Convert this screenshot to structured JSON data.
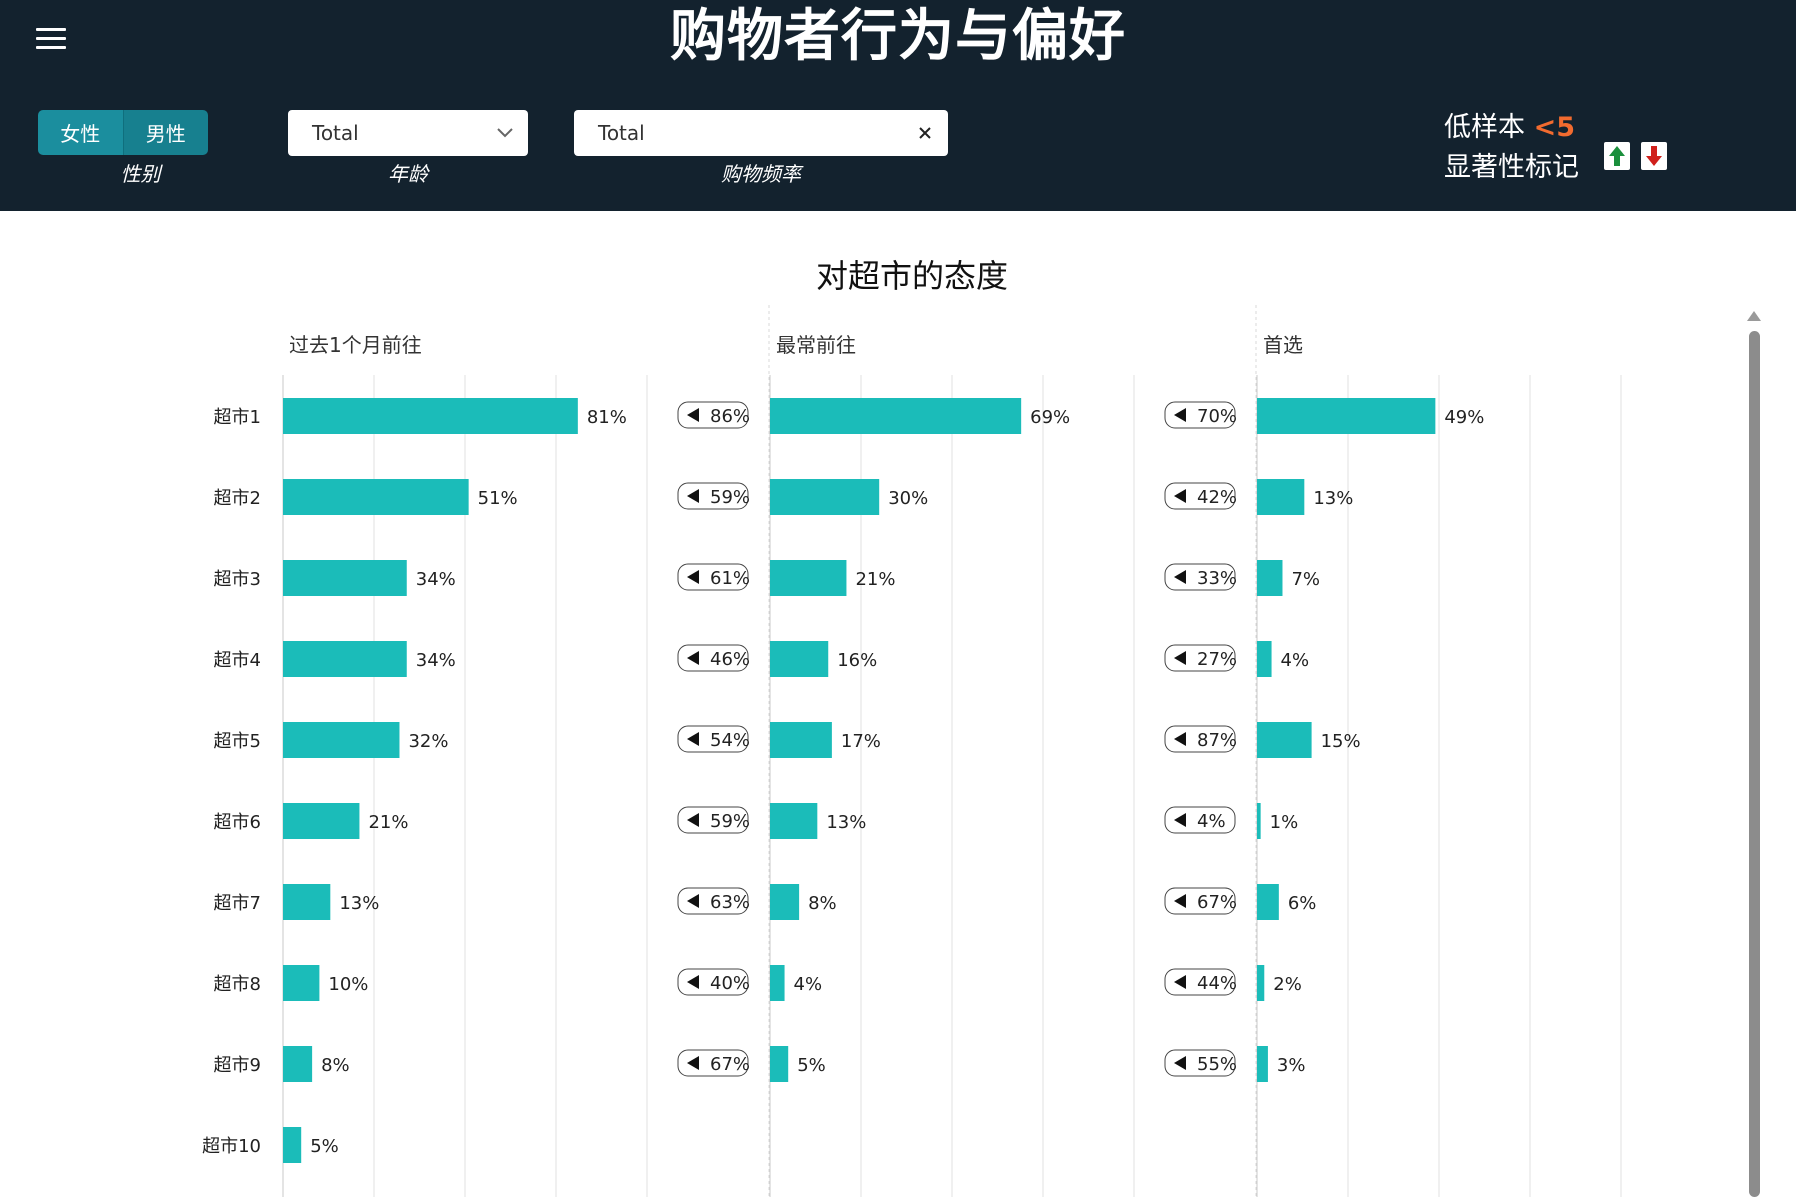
{
  "header": {
    "title": "购物者行为与偏好",
    "gender": {
      "options": [
        "女性",
        "男性"
      ],
      "label": "性别"
    },
    "age": {
      "value": "Total",
      "label": "年龄"
    },
    "frequency": {
      "value": "Total",
      "label": "购物频率"
    },
    "legend": {
      "low_sample_label": "低样本",
      "low_sample_value": "<5",
      "significance_label": "显著性标记"
    }
  },
  "colors": {
    "header_bg": "#13222e",
    "bar": "#1bbcb9",
    "accent": "#1b8e9e",
    "warning": "#f26b2f",
    "sig_up": "#1a8f3c",
    "sig_down": "#d0201c"
  },
  "icons": {
    "menu": "hamburger-icon",
    "age_dropdown": "chevron-down-icon",
    "frequency_clear": "close-icon",
    "sig_up": "arrow-up-icon",
    "sig_down": "arrow-down-icon",
    "badge": "triangle-left-icon"
  },
  "chart_data": {
    "type": "bar",
    "orientation": "horizontal",
    "title": "对超市的态度",
    "categories": [
      "超市1",
      "超市2",
      "超市3",
      "超市4",
      "超市5",
      "超市6",
      "超市7",
      "超市8",
      "超市9",
      "超市10"
    ],
    "xlim": [
      0,
      100
    ],
    "grid": true,
    "panels": [
      {
        "title": "过去1个月前往",
        "values": [
          81,
          51,
          34,
          34,
          32,
          21,
          13,
          10,
          8,
          5
        ],
        "labels": [
          "81%",
          "51%",
          "34%",
          "34%",
          "32%",
          "21%",
          "13%",
          "10%",
          "8%",
          "5%"
        ]
      },
      {
        "title": "最常前往",
        "values": [
          69,
          30,
          21,
          16,
          17,
          13,
          8,
          4,
          5
        ],
        "labels": [
          "69%",
          "30%",
          "21%",
          "16%",
          "17%",
          "13%",
          "8%",
          "4%",
          "5%"
        ],
        "badges": [
          "86%",
          "59%",
          "61%",
          "46%",
          "54%",
          "59%",
          "63%",
          "40%",
          "67%"
        ]
      },
      {
        "title": "首选",
        "values": [
          49,
          13,
          7,
          4,
          15,
          1,
          6,
          2,
          3
        ],
        "labels": [
          "49%",
          "13%",
          "7%",
          "4%",
          "15%",
          "1%",
          "6%",
          "2%",
          "3%"
        ],
        "badges": [
          "70%",
          "42%",
          "33%",
          "27%",
          "87%",
          "4%",
          "67%",
          "44%",
          "55%"
        ]
      }
    ]
  }
}
